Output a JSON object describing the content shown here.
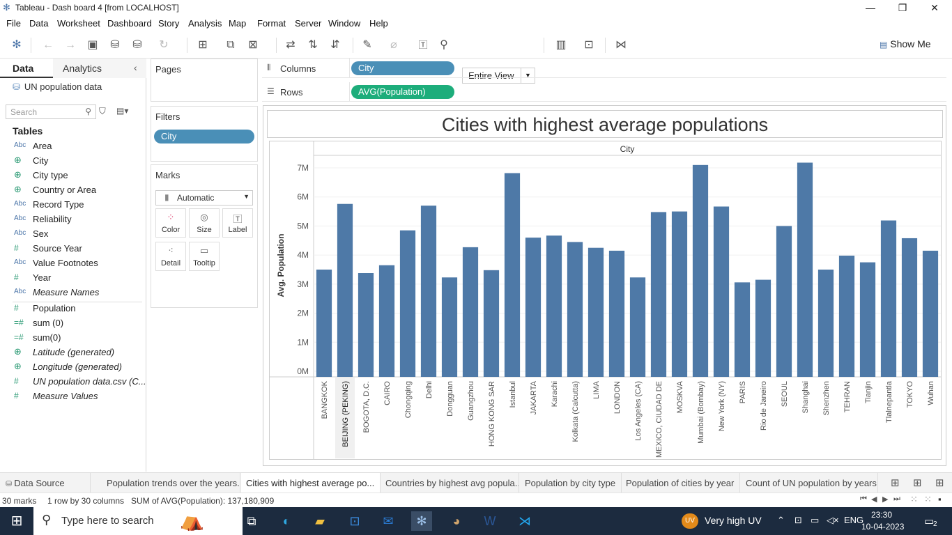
{
  "window": {
    "title": "Tableau - Dash board 4 [from LOCALHOST]",
    "minimize": "—",
    "maximize": "❐",
    "close": "✕"
  },
  "menu": [
    "File",
    "Data",
    "Worksheet",
    "Dashboard",
    "Story",
    "Analysis",
    "Map",
    "Format",
    "Server",
    "Window",
    "Help"
  ],
  "toolbar": {
    "view_mode": "Entire View",
    "show_me": "Show Me"
  },
  "data_pane": {
    "tab_data": "Data",
    "tab_analytics": "Analytics",
    "data_source": "UN population data",
    "search_placeholder": "Search",
    "tables_header": "Tables",
    "dimensions": [
      {
        "type": "abc",
        "name": "Area"
      },
      {
        "type": "geo",
        "name": "City"
      },
      {
        "type": "geo",
        "name": "City type"
      },
      {
        "type": "geo",
        "name": "Country or Area"
      },
      {
        "type": "abc",
        "name": "Record Type"
      },
      {
        "type": "abc",
        "name": "Reliability"
      },
      {
        "type": "abc",
        "name": "Sex"
      },
      {
        "type": "num",
        "name": "Source Year"
      },
      {
        "type": "abc",
        "name": "Value Footnotes"
      },
      {
        "type": "num",
        "name": "Year"
      },
      {
        "type": "abc",
        "name": "Measure Names",
        "italic": true
      }
    ],
    "measures": [
      {
        "type": "num",
        "name": "Population"
      },
      {
        "type": "calc",
        "name": "sum (0)"
      },
      {
        "type": "calc",
        "name": "sum(0)"
      },
      {
        "type": "geo",
        "name": "Latitude (generated)",
        "italic": true
      },
      {
        "type": "geo",
        "name": "Longitude (generated)",
        "italic": true
      },
      {
        "type": "num",
        "name": "UN population data.csv (C...",
        "italic": true
      },
      {
        "type": "num",
        "name": "Measure Values",
        "italic": true
      }
    ],
    "type_labels": {
      "abc": "Abc",
      "geo": "⊕",
      "num": "#",
      "calc": "=#"
    }
  },
  "cards": {
    "pages": "Pages",
    "filters": "Filters",
    "filter_pill": "City",
    "marks": "Marks",
    "mark_type": "Automatic",
    "mark_buttons": [
      {
        "label": "Color",
        "icon": "color-dots-icon"
      },
      {
        "label": "Size",
        "icon": "size-icon"
      },
      {
        "label": "Label",
        "icon": "label-icon"
      },
      {
        "label": "Detail",
        "icon": "detail-icon"
      },
      {
        "label": "Tooltip",
        "icon": "tooltip-icon"
      }
    ]
  },
  "shelves": {
    "columns_label": "Columns",
    "columns_pill": "City",
    "rows_label": "Rows",
    "rows_pill": "AVG(Population)"
  },
  "chart_data": {
    "type": "bar",
    "title": "Cities with highest average populations",
    "column_header": "City",
    "ylabel": "Avg. Population",
    "ylim": [
      0,
      7300000
    ],
    "yticks": [
      "0M",
      "1M",
      "2M",
      "3M",
      "4M",
      "5M",
      "6M",
      "7M"
    ],
    "bar_color": "#4e79a7",
    "categories": [
      "BANGKOK",
      "BEIJING (PEKING)",
      "BOGOTA, D.C.",
      "CAIRO",
      "Chongqing",
      "Delhi",
      "Dongguan",
      "Guangzhou",
      "HONG KONG SAR",
      "Istanbul",
      "JAKARTA",
      "Karachi",
      "Kolkata (Calcutta)",
      "LIMA",
      "LONDON",
      "Los Angeles (CA)",
      "MEXICO, CIUDAD DE",
      "MOSKVA",
      "Mumbai (Bombay)",
      "New York (NY)",
      "PARIS",
      "Rio de Janeiro",
      "SEOUL",
      "Shanghai",
      "Shenzhen",
      "TEHRAN",
      "Tianjin",
      "Tlalnepantla",
      "TOKYO",
      "Wuhan"
    ],
    "values": [
      3500000,
      5760000,
      3380000,
      3650000,
      4850000,
      5700000,
      3230000,
      4270000,
      3480000,
      6820000,
      4600000,
      4670000,
      4450000,
      4250000,
      4150000,
      3230000,
      5480000,
      5500000,
      7100000,
      5670000,
      3060000,
      3150000,
      5000000,
      7180000,
      3500000,
      3980000,
      3750000,
      5190000,
      4580000,
      4150000
    ],
    "highlighted_category": "BEIJING (PEKING)"
  },
  "sheet_tabs": {
    "data_source": "Data Source",
    "tabs": [
      "Population trends over the years...",
      "Cities with highest average po...",
      "Countries by highest avg popula...",
      "Population by city type",
      "Population of cities by year",
      "Count of UN population by years"
    ],
    "active_index": 1
  },
  "status": {
    "marks": "30 marks",
    "layout": "1 row by 30 columns",
    "sum": "SUM of AVG(Population): 137,180,909"
  },
  "taskbar": {
    "search_placeholder": "Type here to search",
    "uv_badge": "UV",
    "weather": "Very high UV",
    "language": "ENG",
    "time": "23:30",
    "date": "10-04-2023",
    "notifications": "2"
  }
}
